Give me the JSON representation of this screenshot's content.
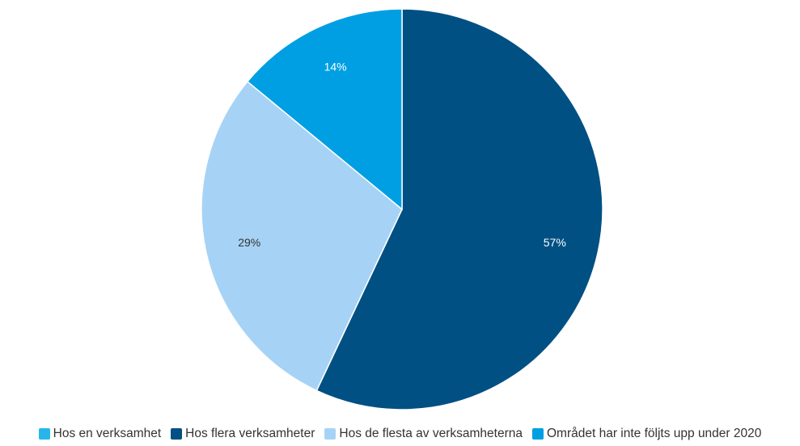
{
  "chart_data": {
    "type": "pie",
    "categories": [
      "Hos en verksamhet",
      "Hos flera verksamheter",
      "Hos de flesta av verksamheterna",
      "Området har inte följts upp under 2020"
    ],
    "values": [
      0,
      57,
      29,
      14
    ],
    "value_labels": [
      "",
      "57%",
      "29%",
      "14%"
    ],
    "colors": [
      "#28b6ea",
      "#005084",
      "#a6d3f5",
      "#009fe3"
    ],
    "label_colors": [
      "#000000",
      "#ffffff",
      "#333333",
      "#ffffff"
    ],
    "start": "top",
    "direction": "clockwise",
    "legend_position": "bottom"
  }
}
